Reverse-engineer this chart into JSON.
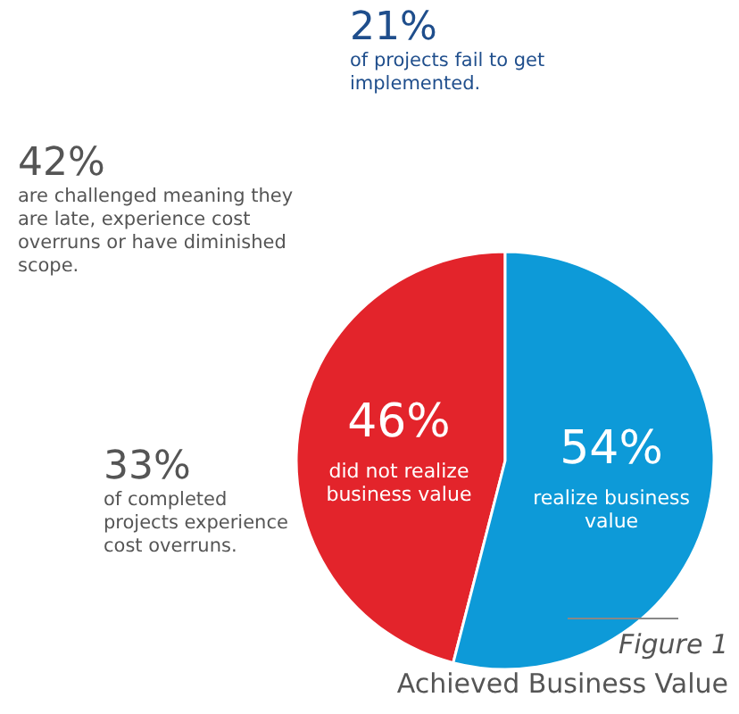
{
  "chart_data": {
    "type": "pie",
    "title": "Figure 1",
    "subtitle": "Achieved Business Value",
    "categories": [
      "did not realize business value",
      "realize business value"
    ],
    "values": [
      46,
      54
    ],
    "colors": [
      "#e3242b",
      "#0d9ad8"
    ],
    "value_labels": [
      "46%",
      "54%"
    ],
    "annotations": [
      "21%",
      "of projects fail to get implemented.",
      "42%",
      "are challenged meaning they are late, experience cost overruns or have diminished scope.",
      "33%",
      "of completed projects experience cost overruns."
    ]
  }
}
